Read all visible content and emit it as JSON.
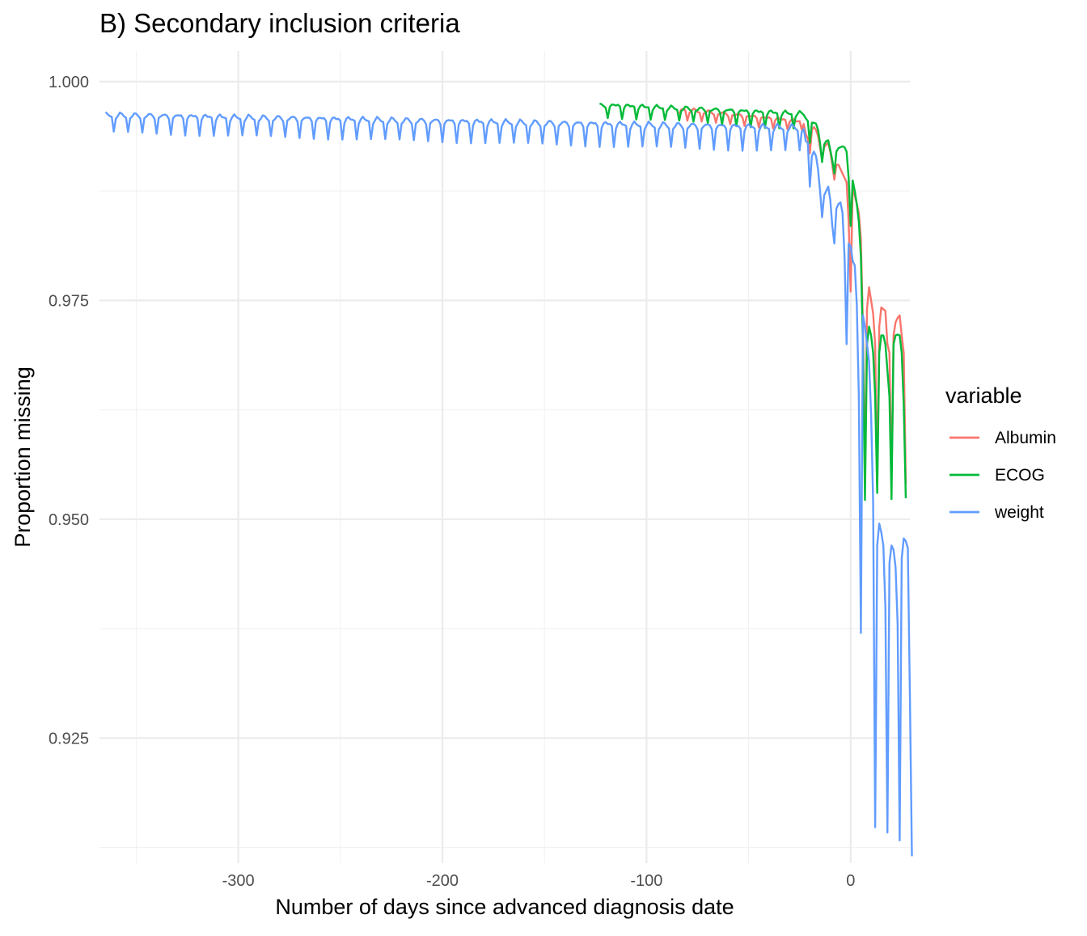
{
  "chart_data": {
    "type": "line",
    "title": "B) Secondary inclusion criteria",
    "xlabel": "Number of days since advanced diagnosis date",
    "ylabel": "Proportion missing",
    "xlim": [
      -368,
      29
    ],
    "ylim": [
      0.9107,
      1.0035
    ],
    "x_ticks": [
      -300,
      -200,
      -100,
      0
    ],
    "x_tick_labels": [
      "-300",
      "-200",
      "-100",
      "0"
    ],
    "x_minor_ticks": [
      -350,
      -250,
      -150,
      -50
    ],
    "y_ticks": [
      0.925,
      0.95,
      0.975,
      1.0
    ],
    "y_tick_labels": [
      "0.925",
      "0.950",
      "0.975",
      "1.000"
    ],
    "y_minor_ticks": [
      0.9125,
      0.9375,
      0.9625,
      0.9875
    ],
    "grid": true,
    "legend": {
      "title": "variable",
      "position": "right",
      "entries": [
        "Albumin",
        "ECOG",
        "weight"
      ]
    },
    "series": [
      {
        "name": "Albumin",
        "color": "#F8766D",
        "periodic_section": {
          "x_start": -84,
          "x_end": -22,
          "peak_start": 0.997,
          "peak_end": 0.9955,
          "trough_start": 0.9955,
          "trough_end": 0.9945
        },
        "points": [
          [
            -84,
            0.9963
          ],
          [
            -83,
            0.9968
          ],
          [
            -82,
            0.9969
          ],
          [
            -22,
            0.994
          ],
          [
            -21,
            0.9935
          ],
          [
            -20,
            0.9918
          ],
          [
            -19,
            0.9945
          ],
          [
            -18,
            0.9948
          ],
          [
            -17,
            0.9945
          ],
          [
            -16,
            0.9938
          ],
          [
            -15,
            0.9925
          ],
          [
            -14,
            0.991
          ],
          [
            -13,
            0.9925
          ],
          [
            -12,
            0.9928
          ],
          [
            -11,
            0.993
          ],
          [
            -10,
            0.992
          ],
          [
            -9,
            0.9905
          ],
          [
            -8,
            0.9888
          ],
          [
            -7,
            0.9905
          ],
          [
            -6,
            0.9905
          ],
          [
            -5,
            0.99
          ],
          [
            -4,
            0.9895
          ],
          [
            -3,
            0.989
          ],
          [
            -2,
            0.9885
          ],
          [
            -1,
            0.984
          ],
          [
            0,
            0.976
          ],
          [
            1,
            0.988
          ],
          [
            2,
            0.987
          ],
          [
            3,
            0.986
          ],
          [
            4,
            0.985
          ],
          [
            5,
            0.982
          ],
          [
            6,
            0.972
          ],
          [
            7,
            0.954
          ],
          [
            8,
            0.974
          ],
          [
            9,
            0.9765
          ],
          [
            10,
            0.975
          ],
          [
            11,
            0.9735
          ],
          [
            12,
            0.97
          ],
          [
            13,
            0.954
          ],
          [
            14,
            0.972
          ],
          [
            15,
            0.9742
          ],
          [
            16,
            0.974
          ],
          [
            17,
            0.9738
          ],
          [
            18,
            0.97
          ],
          [
            19,
            0.969
          ],
          [
            20,
            0.954
          ],
          [
            21,
            0.971
          ],
          [
            22,
            0.9725
          ],
          [
            23,
            0.973
          ],
          [
            24,
            0.9733
          ],
          [
            25,
            0.971
          ],
          [
            26,
            0.969
          ],
          [
            27,
            0.954
          ]
        ]
      },
      {
        "name": "ECOG",
        "color": "#00BA38",
        "periodic_section": {
          "x_start": -123,
          "x_end": -22,
          "peak_start": 0.9975,
          "peak_end": 0.9965,
          "trough_start": 0.996,
          "trough_end": 0.9945
        },
        "points": [
          [
            -123,
            0.9975
          ],
          [
            -122,
            0.9974
          ],
          [
            -121,
            0.9972
          ],
          [
            -120,
            0.997
          ],
          [
            -22,
            0.9958
          ],
          [
            -21,
            0.9955
          ],
          [
            -20,
            0.993
          ],
          [
            -19,
            0.9953
          ],
          [
            -18,
            0.9953
          ],
          [
            -17,
            0.9952
          ],
          [
            -16,
            0.9945
          ],
          [
            -15,
            0.993
          ],
          [
            -14,
            0.9908
          ],
          [
            -13,
            0.9928
          ],
          [
            -12,
            0.9932
          ],
          [
            -11,
            0.9933
          ],
          [
            -10,
            0.9922
          ],
          [
            -9,
            0.991
          ],
          [
            -8,
            0.9895
          ],
          [
            -7,
            0.992
          ],
          [
            -6,
            0.9924
          ],
          [
            -5,
            0.9925
          ],
          [
            -4,
            0.9926
          ],
          [
            -3,
            0.9925
          ],
          [
            -2,
            0.992
          ],
          [
            -1,
            0.989
          ],
          [
            0,
            0.9835
          ],
          [
            1,
            0.9887
          ],
          [
            2,
            0.9875
          ],
          [
            3,
            0.986
          ],
          [
            4,
            0.984
          ],
          [
            5,
            0.98
          ],
          [
            6,
            0.97
          ],
          [
            7,
            0.9522
          ],
          [
            8,
            0.97
          ],
          [
            9,
            0.972
          ],
          [
            10,
            0.971
          ],
          [
            11,
            0.969
          ],
          [
            12,
            0.964
          ],
          [
            13,
            0.953
          ],
          [
            14,
            0.969
          ],
          [
            15,
            0.971
          ],
          [
            16,
            0.971
          ],
          [
            17,
            0.97
          ],
          [
            18,
            0.967
          ],
          [
            19,
            0.964
          ],
          [
            20,
            0.9523
          ],
          [
            21,
            0.97
          ],
          [
            22,
            0.971
          ],
          [
            23,
            0.9711
          ],
          [
            24,
            0.971
          ],
          [
            25,
            0.969
          ],
          [
            26,
            0.963
          ],
          [
            27,
            0.9524
          ]
        ]
      },
      {
        "name": "weight",
        "color": "#619CFF",
        "periodic_section": {
          "x_start": -365,
          "x_end": -22,
          "peak_start": 0.9964,
          "peak_end": 0.995,
          "trough_start": 0.9942,
          "trough_end": 0.992
        },
        "points": [
          [
            -22,
            0.9932
          ],
          [
            -21,
            0.993
          ],
          [
            -20,
            0.988
          ],
          [
            -19,
            0.9915
          ],
          [
            -18,
            0.992
          ],
          [
            -17,
            0.9915
          ],
          [
            -16,
            0.99
          ],
          [
            -15,
            0.9875
          ],
          [
            -14,
            0.9845
          ],
          [
            -13,
            0.987
          ],
          [
            -12,
            0.9875
          ],
          [
            -11,
            0.988
          ],
          [
            -10,
            0.9865
          ],
          [
            -9,
            0.9835
          ],
          [
            -8,
            0.9815
          ],
          [
            -7,
            0.9855
          ],
          [
            -6,
            0.986
          ],
          [
            -5,
            0.9862
          ],
          [
            -4,
            0.985
          ],
          [
            -3,
            0.98
          ],
          [
            -2,
            0.97
          ],
          [
            -1,
            0.9815
          ],
          [
            0,
            0.9812
          ],
          [
            1,
            0.9795
          ],
          [
            2,
            0.979
          ],
          [
            3,
            0.9745
          ],
          [
            4,
            0.964
          ],
          [
            5,
            0.937
          ],
          [
            6,
            0.9733
          ],
          [
            7,
            0.972
          ],
          [
            8,
            0.97
          ],
          [
            9,
            0.968
          ],
          [
            10,
            0.962
          ],
          [
            11,
            0.952
          ],
          [
            12,
            0.9148
          ],
          [
            13,
            0.947
          ],
          [
            14,
            0.9495
          ],
          [
            15,
            0.9485
          ],
          [
            16,
            0.947
          ],
          [
            17,
            0.94
          ],
          [
            18,
            0.9142
          ],
          [
            19,
            0.945
          ],
          [
            20,
            0.947
          ],
          [
            21,
            0.9465
          ],
          [
            22,
            0.9445
          ],
          [
            23,
            0.938
          ],
          [
            24,
            0.9133
          ],
          [
            25,
            0.9455
          ],
          [
            26,
            0.9478
          ],
          [
            27,
            0.9475
          ],
          [
            28,
            0.9467
          ],
          [
            29,
            0.93
          ],
          [
            30,
            0.9115
          ]
        ]
      }
    ]
  }
}
